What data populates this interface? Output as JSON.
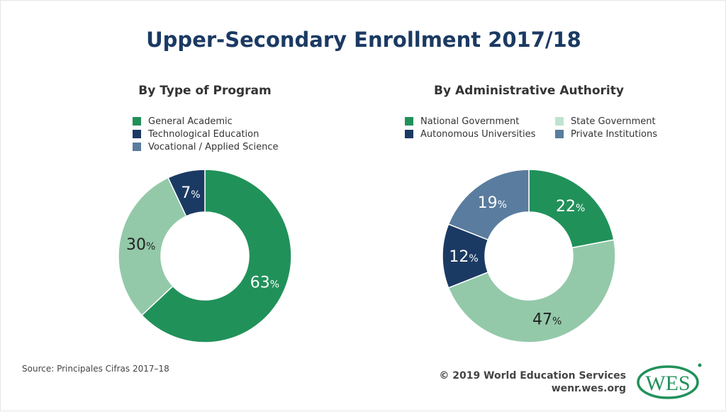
{
  "title": "Upper-Secondary Enrollment 2017/18",
  "chart_data": [
    {
      "type": "pie",
      "donut": true,
      "title": "By Type of Program",
      "legend": [
        {
          "label": "General Academic",
          "color": "#21915a"
        },
        {
          "label": "Technological Education",
          "color": "#1b3a63"
        },
        {
          "label": "Vocational / Applied Science",
          "color": "#5a7c9e"
        }
      ],
      "slices": [
        {
          "label": "General Academic",
          "value": 63,
          "color": "#21915a",
          "text": "63",
          "textColor": "#ffffff"
        },
        {
          "label": "Vocational / Applied Science",
          "value": 30,
          "color": "#93c9a9",
          "text": "30",
          "textColor": "#222222"
        },
        {
          "label": "Technological Education",
          "value": 7,
          "color": "#1b3a63",
          "text": "7",
          "textColor": "#ffffff"
        }
      ]
    },
    {
      "type": "pie",
      "donut": true,
      "title": "By Administrative Authority",
      "legend": [
        {
          "label": "National Government",
          "color": "#21915a"
        },
        {
          "label": "State Government",
          "color": "#bfe3cf"
        },
        {
          "label": "Autonomous Universities",
          "color": "#1b3a63"
        },
        {
          "label": "Private Institutions",
          "color": "#5a7c9e"
        }
      ],
      "slices": [
        {
          "label": "National Government",
          "value": 22,
          "color": "#21915a",
          "text": "22",
          "textColor": "#ffffff"
        },
        {
          "label": "State Government",
          "value": 47,
          "color": "#93c9a9",
          "text": "47",
          "textColor": "#222222"
        },
        {
          "label": "Autonomous Universities",
          "value": 12,
          "color": "#1b3a63",
          "text": "12",
          "textColor": "#ffffff"
        },
        {
          "label": "Private Institutions",
          "value": 19,
          "color": "#5a7c9e",
          "text": "19",
          "textColor": "#ffffff"
        }
      ]
    }
  ],
  "percent_sign": "%",
  "source": "Source: Principales Cifras 2017–18",
  "copyright": "© 2019 World Education Services",
  "website": "wenr.wes.org",
  "logo_text": "WES"
}
